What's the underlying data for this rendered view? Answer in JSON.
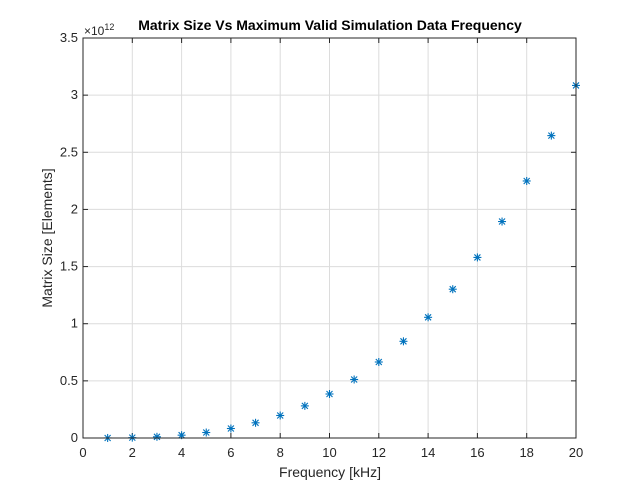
{
  "chart_data": {
    "type": "scatter",
    "title": "Matrix Size Vs Maximum Valid Simulation Data Frequency",
    "xlabel": "Frequency [kHz]",
    "ylabel": "Matrix Size [Elements]",
    "y_exponent_base": "×10",
    "y_exponent_power": "12",
    "xlim": [
      0,
      20
    ],
    "ylim": [
      0,
      3.5
    ],
    "xticks": [
      "0",
      "2",
      "4",
      "6",
      "8",
      "10",
      "12",
      "14",
      "16",
      "18",
      "20"
    ],
    "yticks": [
      "0",
      "0.5",
      "1",
      "1.5",
      "2",
      "2.5",
      "3",
      "3.5"
    ],
    "grid": true,
    "marker": "asterisk",
    "marker_color": "#0072BD",
    "x": [
      1,
      2,
      3,
      4,
      5,
      6,
      7,
      8,
      9,
      10,
      11,
      12,
      13,
      14,
      15,
      16,
      17,
      18,
      19,
      20
    ],
    "y": [
      0.0004,
      0.0031,
      0.0104,
      0.0247,
      0.048,
      0.083,
      0.133,
      0.197,
      0.281,
      0.385,
      0.512,
      0.665,
      0.846,
      1.056,
      1.302,
      1.58,
      1.894,
      2.249,
      2.646,
      3.085
    ]
  }
}
